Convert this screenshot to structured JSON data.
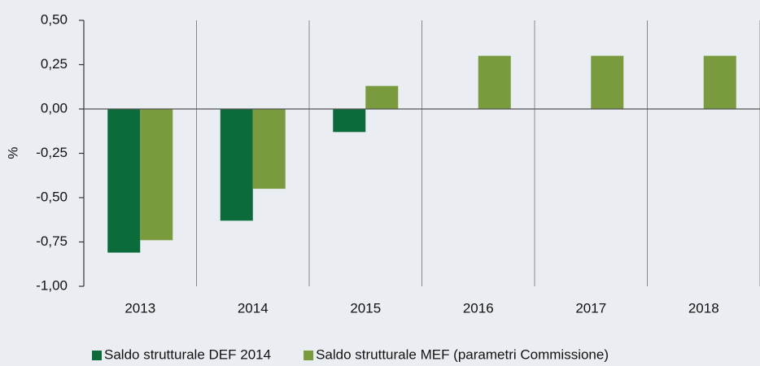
{
  "chart_data": {
    "type": "bar",
    "y_label": "%",
    "categories": [
      "2013",
      "2014",
      "2015",
      "2016",
      "2017",
      "2018"
    ],
    "series": [
      {
        "name": "Saldo strutturale DEF 2014",
        "color": "#0b6b3a",
        "values": [
          -0.81,
          -0.63,
          -0.13,
          null,
          null,
          null
        ]
      },
      {
        "name": "Saldo strutturale MEF (parametri Commissione)",
        "color": "#7a9a3e",
        "values": [
          -0.74,
          -0.45,
          0.13,
          0.3,
          0.3,
          0.3
        ]
      }
    ],
    "ylim": [
      -1,
      0.5
    ],
    "yticks": [
      {
        "value": 0.5,
        "label": "0,50"
      },
      {
        "value": 0.25,
        "label": "0,25"
      },
      {
        "value": 0,
        "label": "0,00"
      },
      {
        "value": -0.25,
        "label": "-0,25"
      },
      {
        "value": -0.5,
        "label": "-0,50"
      },
      {
        "value": -0.75,
        "label": "-0,75"
      },
      {
        "value": -1,
        "label": "-1,00"
      }
    ],
    "legend": "bottom"
  }
}
